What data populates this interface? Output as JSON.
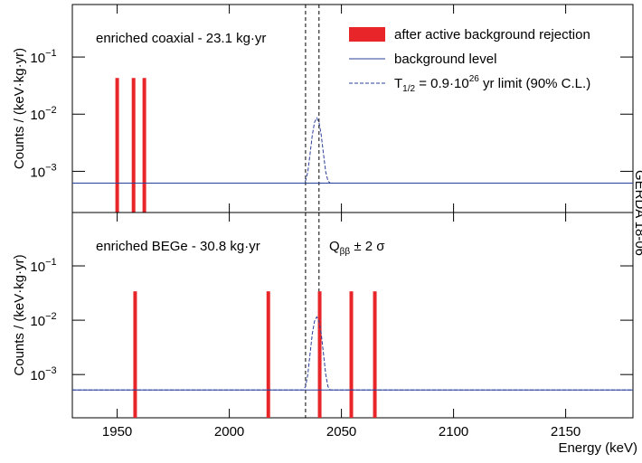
{
  "chart_data": [
    {
      "type": "bar",
      "title": "enriched coaxial - 23.1 kg·yr",
      "log_y": true,
      "ylabel": "Counts / (keV·kg·yr)",
      "xlim": [
        1930,
        2180
      ],
      "xticks": [
        1950,
        2000,
        2050,
        2100,
        2150
      ],
      "xtick_labels": false,
      "ylim": [
        0.00019,
        0.83
      ],
      "yticks": [
        {
          "value": 0.001,
          "label": [
            "10",
            "−3"
          ]
        },
        {
          "value": 0.01,
          "label": [
            "10",
            "−2"
          ]
        },
        {
          "value": 0.1,
          "label": [
            "10",
            "−1"
          ]
        }
      ],
      "vlines": [
        2034,
        2040
      ],
      "series": [
        {
          "name": "after active background rejection",
          "color": "#e8262a",
          "type": "bar",
          "x": [
            1950,
            1957.3,
            1962.1
          ],
          "values": [
            0.043,
            0.043,
            0.043
          ]
        },
        {
          "name": "background level",
          "color": "#2a3f9a",
          "type": "line",
          "x": [
            1930,
            2180
          ],
          "values": [
            0.00062,
            0.00062
          ]
        },
        {
          "name_parts": [
            {
              "text": "T"
            },
            {
              "text": "1/2",
              "shift": "sub"
            },
            {
              "text": " = 0.9·10"
            },
            {
              "text": "26",
              "shift": "sup"
            },
            {
              "text": " yr limit (90% C.L.)"
            }
          ],
          "color": "#2a3f9a",
          "type": "dashed",
          "x": [
            1930,
            2033,
            2034,
            2035,
            2036,
            2037,
            2038,
            2039,
            2040,
            2041,
            2042,
            2043,
            2044,
            2045,
            2180
          ],
          "values": [
            0.00062,
            0.00062,
            0.00068,
            0.00097,
            0.002,
            0.00428,
            0.0072,
            0.00862,
            0.0072,
            0.00428,
            0.002,
            0.00097,
            0.00068,
            0.00062,
            0.00062
          ]
        }
      ]
    },
    {
      "type": "bar",
      "title": "enriched BEGe - 30.8 kg·yr",
      "log_y": true,
      "ylabel": "Counts / (keV·kg·yr)",
      "xlabel": "Energy (keV)",
      "xlim": [
        1930,
        2180
      ],
      "xticks": [
        1950,
        2000,
        2050,
        2100,
        2150
      ],
      "xtick_labels": true,
      "ylim": [
        0.00016,
        0.96
      ],
      "yticks": [
        {
          "value": 0.001,
          "label": [
            "10",
            "−3"
          ]
        },
        {
          "value": 0.01,
          "label": [
            "10",
            "−2"
          ]
        },
        {
          "value": 0.1,
          "label": [
            "10",
            "−1"
          ]
        }
      ],
      "vlines": [
        2034,
        2040
      ],
      "annotation_parts": [
        {
          "text": "Q"
        },
        {
          "text": "ββ",
          "shift": "sub"
        },
        {
          "text": " ± 2 σ"
        }
      ],
      "side_note": "GERDA 18-06",
      "series": [
        {
          "color": "#e8262a",
          "type": "bar",
          "x": [
            1958,
            2017.4,
            2040.3,
            2054.4,
            2064.9
          ],
          "values": [
            0.034,
            0.034,
            0.034,
            0.034,
            0.034
          ]
        },
        {
          "color": "#2a3f9a",
          "type": "line",
          "x": [
            1930,
            2180
          ],
          "values": [
            0.00052,
            0.00052
          ]
        },
        {
          "color": "#2a3f9a",
          "type": "dashed",
          "x": [
            1930,
            2033,
            2034,
            2035,
            2036,
            2037,
            2038,
            2039,
            2040,
            2041,
            2042,
            2043,
            2044,
            2045,
            2180
          ],
          "values": [
            0.00052,
            0.00052,
            0.0006,
            0.001,
            0.0024,
            0.0056,
            0.0096,
            0.0115,
            0.0096,
            0.0056,
            0.0024,
            0.001,
            0.0006,
            0.00052,
            0.00052
          ]
        }
      ]
    }
  ]
}
